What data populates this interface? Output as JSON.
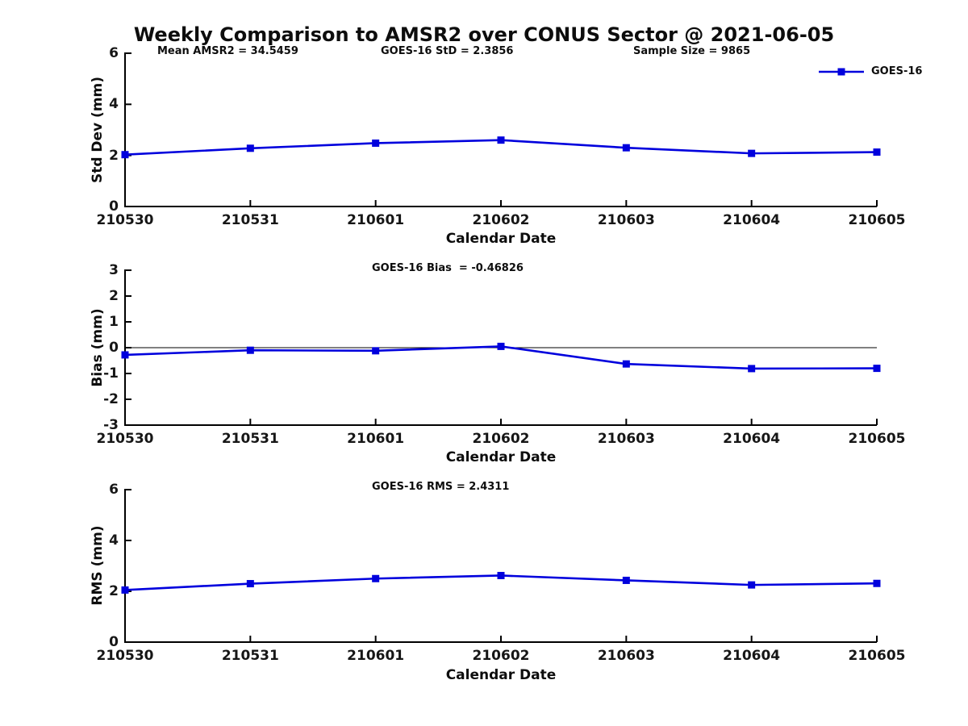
{
  "title": "Weekly Comparison to AMSR2 over CONUS Sector @ 2021-06-05",
  "line_color": "#0000dd",
  "axis_color": "#000000",
  "chart_data": [
    {
      "type": "line",
      "panel": "std-dev",
      "categories": [
        "210530",
        "210531",
        "210601",
        "210602",
        "210603",
        "210604",
        "210605"
      ],
      "series": [
        {
          "name": "GOES-16",
          "values": [
            2.03,
            2.28,
            2.48,
            2.6,
            2.3,
            2.08,
            2.13
          ]
        }
      ],
      "annotations": [
        "Mean AMSR2 = 34.5459",
        "GOES-16 StD = 2.3856",
        "Sample Size = 9865"
      ],
      "xlabel": "Calendar Date",
      "ylabel": "Std Dev (mm)",
      "ylim": [
        0,
        6
      ],
      "yticks": [
        0,
        2,
        4,
        6
      ],
      "grid": false,
      "legend_position": "upper right",
      "marker": "square"
    },
    {
      "type": "line",
      "panel": "bias",
      "categories": [
        "210530",
        "210531",
        "210601",
        "210602",
        "210603",
        "210604",
        "210605"
      ],
      "series": [
        {
          "name": "GOES-16",
          "values": [
            -0.28,
            -0.1,
            -0.12,
            0.05,
            -0.63,
            -0.81,
            -0.8
          ]
        }
      ],
      "annotations": [
        "GOES-16 Bias  = -0.46826"
      ],
      "xlabel": "Calendar Date",
      "ylabel": "Bias (mm)",
      "ylim": [
        -3,
        3
      ],
      "yticks": [
        3,
        2,
        1,
        0,
        -1,
        -2,
        -3
      ],
      "zero_line": true,
      "grid": false,
      "marker": "square"
    },
    {
      "type": "line",
      "panel": "rms",
      "categories": [
        "210530",
        "210531",
        "210601",
        "210602",
        "210603",
        "210604",
        "210605"
      ],
      "series": [
        {
          "name": "GOES-16",
          "values": [
            2.05,
            2.3,
            2.5,
            2.62,
            2.43,
            2.25,
            2.31
          ]
        }
      ],
      "annotations": [
        "GOES-16 RMS = 2.4311"
      ],
      "xlabel": "Calendar Date",
      "ylabel": "RMS (mm)",
      "ylim": [
        0,
        6
      ],
      "yticks": [
        0,
        2,
        4,
        6
      ],
      "grid": false,
      "marker": "square"
    }
  ]
}
